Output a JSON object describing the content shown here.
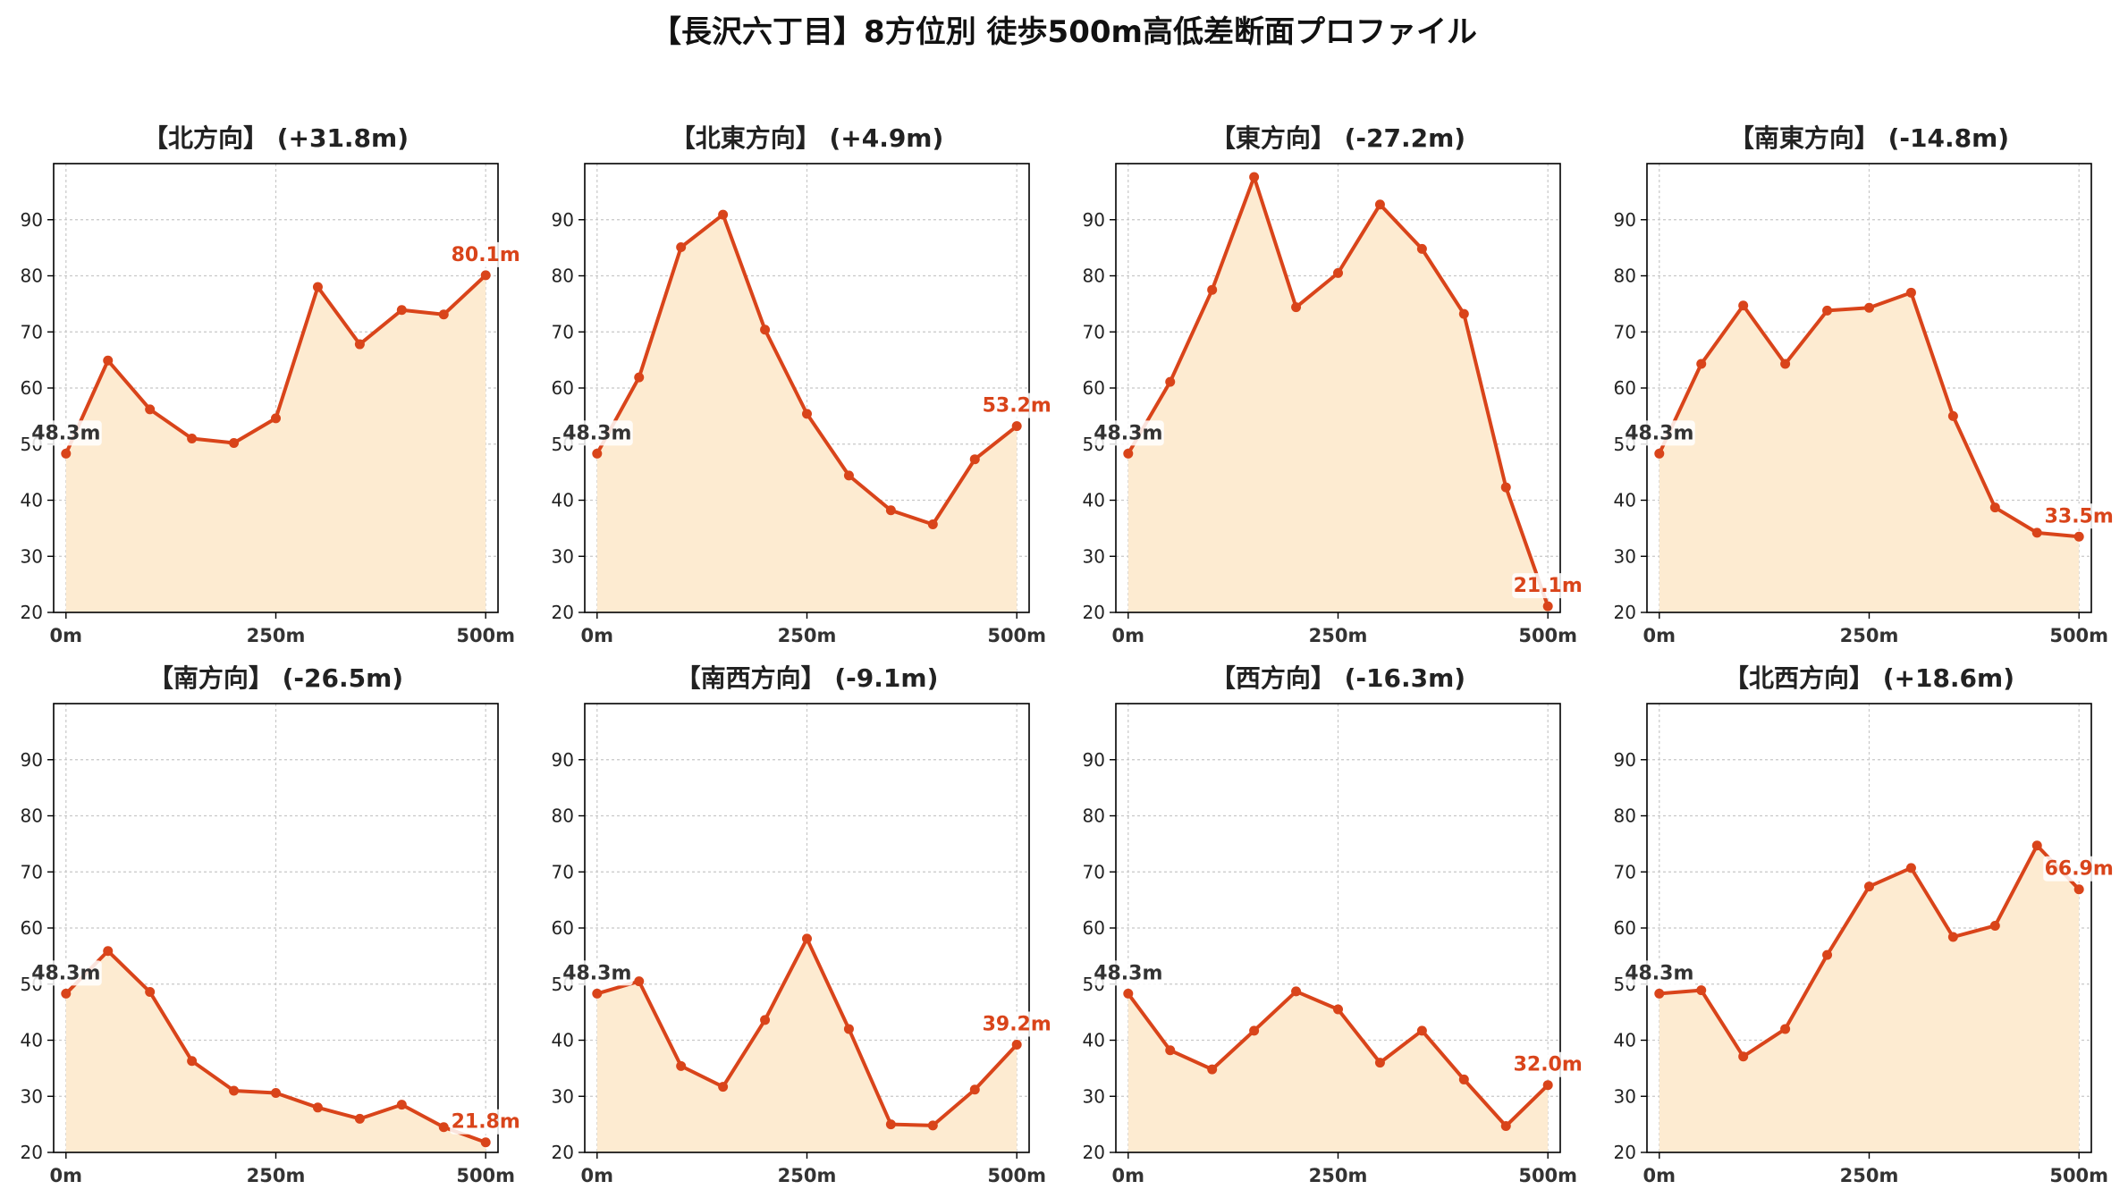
{
  "suptitle": "【長沢六丁目】8方位別 徒歩500m高低差断面プロファイル",
  "colors": {
    "line": "#d9441a",
    "fill": "#fdebd1",
    "start_label": "#333333",
    "end_label": "#d9441a",
    "grid": "#c8c8c8",
    "axis": "#000000"
  },
  "chart_data": [
    {
      "type": "area",
      "title": "【北方向】 (+31.8m)",
      "x": [
        0,
        50,
        100,
        150,
        200,
        250,
        300,
        350,
        400,
        450,
        500
      ],
      "values": [
        48.3,
        64.9,
        56.2,
        51.0,
        50.2,
        54.6,
        78.0,
        67.8,
        73.9,
        73.1,
        80.1
      ],
      "xticks": [
        "0m",
        "250m",
        "500m"
      ],
      "ylim": [
        20,
        100
      ],
      "yticks": [
        20,
        30,
        40,
        50,
        60,
        70,
        80,
        90
      ],
      "start_label": "48.3m",
      "end_label": "80.1m",
      "grid": true
    },
    {
      "type": "area",
      "title": "【北東方向】 (+4.9m)",
      "x": [
        0,
        50,
        100,
        150,
        200,
        250,
        300,
        350,
        400,
        450,
        500
      ],
      "values": [
        48.3,
        61.9,
        85.1,
        90.9,
        70.4,
        55.4,
        44.4,
        38.2,
        35.7,
        47.3,
        53.2
      ],
      "xticks": [
        "0m",
        "250m",
        "500m"
      ],
      "ylim": [
        20,
        100
      ],
      "yticks": [
        20,
        30,
        40,
        50,
        60,
        70,
        80,
        90
      ],
      "start_label": "48.3m",
      "end_label": "53.2m",
      "grid": true
    },
    {
      "type": "area",
      "title": "【東方向】 (-27.2m)",
      "x": [
        0,
        50,
        100,
        150,
        200,
        250,
        300,
        350,
        400,
        450,
        500
      ],
      "values": [
        48.3,
        61.1,
        77.5,
        97.6,
        74.4,
        80.5,
        92.7,
        84.8,
        73.2,
        42.3,
        21.1
      ],
      "xticks": [
        "0m",
        "250m",
        "500m"
      ],
      "ylim": [
        20,
        100
      ],
      "yticks": [
        20,
        30,
        40,
        50,
        60,
        70,
        80,
        90
      ],
      "start_label": "48.3m",
      "end_label": "21.1m",
      "grid": true
    },
    {
      "type": "area",
      "title": "【南東方向】 (-14.8m)",
      "x": [
        0,
        50,
        100,
        150,
        200,
        250,
        300,
        350,
        400,
        450,
        500
      ],
      "values": [
        48.3,
        64.3,
        74.7,
        64.3,
        73.8,
        74.3,
        77.0,
        55.0,
        38.7,
        34.2,
        33.5
      ],
      "xticks": [
        "0m",
        "250m",
        "500m"
      ],
      "ylim": [
        20,
        100
      ],
      "yticks": [
        20,
        30,
        40,
        50,
        60,
        70,
        80,
        90
      ],
      "start_label": "48.3m",
      "end_label": "33.5m",
      "grid": true
    },
    {
      "type": "area",
      "title": "【南方向】 (-26.5m)",
      "x": [
        0,
        50,
        100,
        150,
        200,
        250,
        300,
        350,
        400,
        450,
        500
      ],
      "values": [
        48.3,
        55.9,
        48.6,
        36.3,
        31.0,
        30.6,
        28.0,
        26.0,
        28.5,
        24.5,
        21.8
      ],
      "xticks": [
        "0m",
        "250m",
        "500m"
      ],
      "ylim": [
        20,
        100
      ],
      "yticks": [
        20,
        30,
        40,
        50,
        60,
        70,
        80,
        90
      ],
      "start_label": "48.3m",
      "end_label": "21.8m",
      "grid": true
    },
    {
      "type": "area",
      "title": "【南西方向】 (-9.1m)",
      "x": [
        0,
        50,
        100,
        150,
        200,
        250,
        300,
        350,
        400,
        450,
        500
      ],
      "values": [
        48.3,
        50.5,
        35.4,
        31.7,
        43.6,
        58.1,
        42.0,
        25.0,
        24.8,
        31.2,
        39.2
      ],
      "xticks": [
        "0m",
        "250m",
        "500m"
      ],
      "ylim": [
        20,
        100
      ],
      "yticks": [
        20,
        30,
        40,
        50,
        60,
        70,
        80,
        90
      ],
      "start_label": "48.3m",
      "end_label": "39.2m",
      "grid": true
    },
    {
      "type": "area",
      "title": "【西方向】 (-16.3m)",
      "x": [
        0,
        50,
        100,
        150,
        200,
        250,
        300,
        350,
        400,
        450,
        500
      ],
      "values": [
        48.3,
        38.2,
        34.8,
        41.7,
        48.7,
        45.5,
        36.0,
        41.7,
        33.0,
        24.7,
        32.0
      ],
      "xticks": [
        "0m",
        "250m",
        "500m"
      ],
      "ylim": [
        20,
        100
      ],
      "yticks": [
        20,
        30,
        40,
        50,
        60,
        70,
        80,
        90
      ],
      "start_label": "48.3m",
      "end_label": "32.0m",
      "grid": true
    },
    {
      "type": "area",
      "title": "【北西方向】 (+18.6m)",
      "x": [
        0,
        50,
        100,
        150,
        200,
        250,
        300,
        350,
        400,
        450,
        500
      ],
      "values": [
        48.3,
        48.9,
        37.1,
        42.0,
        55.2,
        67.4,
        70.7,
        58.4,
        60.4,
        74.7,
        66.9
      ],
      "xticks": [
        "0m",
        "250m",
        "500m"
      ],
      "ylim": [
        20,
        100
      ],
      "yticks": [
        20,
        30,
        40,
        50,
        60,
        70,
        80,
        90
      ],
      "start_label": "48.3m",
      "end_label": "66.9m",
      "grid": true
    }
  ]
}
